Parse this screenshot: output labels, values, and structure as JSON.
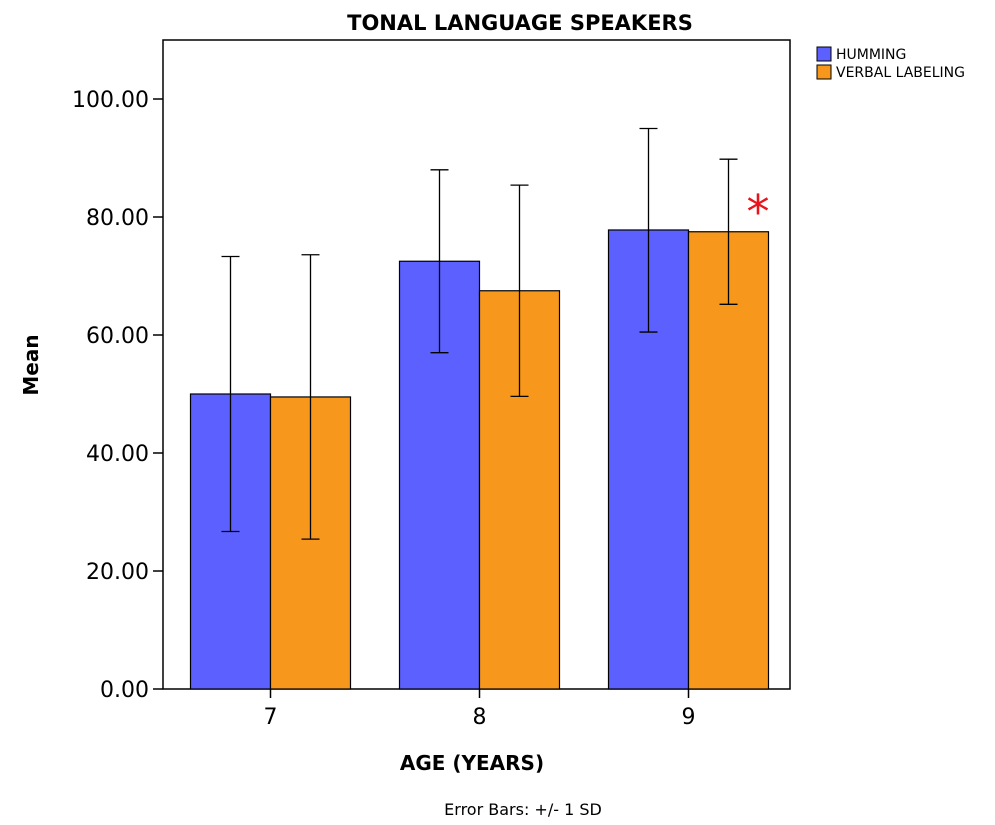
{
  "chart_data": {
    "type": "bar",
    "title": "TONAL LANGUAGE SPEAKERS",
    "xlabel": "AGE (YEARS)",
    "ylabel": "Mean",
    "categories": [
      "7",
      "8",
      "9"
    ],
    "series": [
      {
        "name": "HUMMING",
        "color": "#5b60ff",
        "values": [
          50.0,
          72.5,
          77.8
        ],
        "error_low": [
          26.7,
          57.0,
          60.5
        ],
        "error_high": [
          73.3,
          88.0,
          95.0
        ]
      },
      {
        "name": "VERBAL LABELING",
        "color": "#f7981d",
        "values": [
          49.5,
          67.5,
          77.5
        ],
        "error_low": [
          25.4,
          49.6,
          65.2
        ],
        "error_high": [
          73.6,
          85.4,
          89.8
        ]
      }
    ],
    "ylim": [
      0,
      110
    ],
    "yticks": [
      "0.00",
      "20.00",
      "40.00",
      "60.00",
      "80.00",
      "100.00"
    ],
    "grid": false,
    "legend_position": "top-right, outside plot",
    "footnote": "Error Bars: +/- 1 SD",
    "annotation": "*",
    "annotation_color": "#e8141b"
  }
}
